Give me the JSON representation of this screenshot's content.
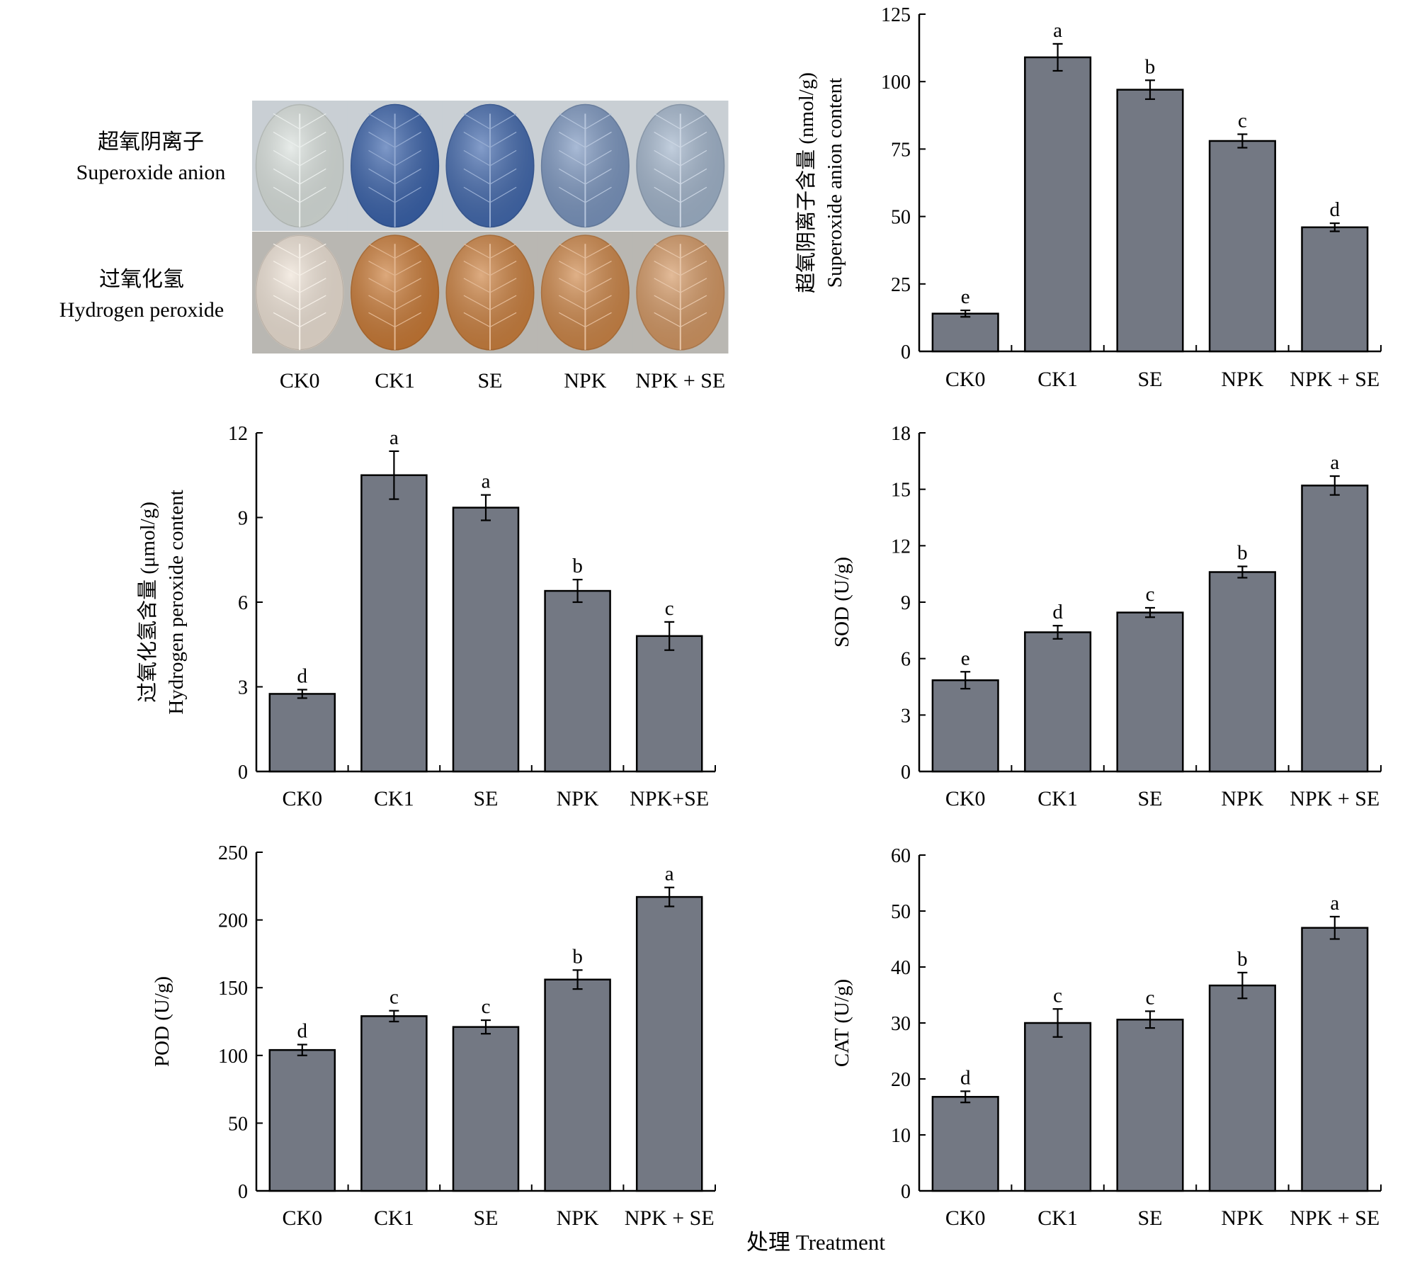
{
  "figure": {
    "x_axis_title": "处理 Treatment",
    "colors": {
      "bar": "#737883",
      "bar_stroke": "#000000",
      "superoxide_stain": "#2f5aa8",
      "peroxide_stain": "#c8742c"
    }
  },
  "photo_panel": {
    "row_labels": [
      {
        "zh": "超氧阴离子",
        "en": "Superoxide anion"
      },
      {
        "zh": "过氧化氢",
        "en": "Hydrogen peroxide"
      }
    ],
    "columns": [
      "CK0",
      "CK1",
      "SE",
      "NPK",
      "NPK + SE"
    ],
    "superoxide_stain_level": [
      0.1,
      0.95,
      0.9,
      0.6,
      0.4
    ],
    "peroxide_stain_level": [
      0.05,
      0.95,
      0.9,
      0.85,
      0.7
    ]
  },
  "chart_data": [
    {
      "id": "superoxide",
      "type": "bar",
      "categories": [
        "CK0",
        "CK1",
        "SE",
        "NPK",
        "NPK + SE"
      ],
      "values": [
        14,
        109,
        97,
        78,
        46
      ],
      "errors": [
        1.2,
        5,
        3.5,
        2.5,
        1.5
      ],
      "letters": [
        "e",
        "a",
        "b",
        "c",
        "d"
      ],
      "ylabel_zh": "超氧阴离子含量 (nmol/g)",
      "ylabel_en": "Superoxide anion content",
      "ylim": [
        0,
        125
      ],
      "yticks": [
        0,
        25,
        50,
        75,
        100,
        125
      ]
    },
    {
      "id": "h2o2",
      "type": "bar",
      "categories": [
        "CK0",
        "CK1",
        "SE",
        "NPK",
        "NPK+SE"
      ],
      "values": [
        2.75,
        10.5,
        9.35,
        6.4,
        4.8
      ],
      "errors": [
        0.15,
        0.85,
        0.45,
        0.4,
        0.5
      ],
      "letters": [
        "d",
        "a",
        "a",
        "b",
        "c"
      ],
      "ylabel_zh": "过氧化氢含量 (μmol/g)",
      "ylabel_en": "Hydrogen peroxide content",
      "ylim": [
        0,
        12
      ],
      "yticks": [
        0,
        3,
        6,
        9,
        12
      ]
    },
    {
      "id": "sod",
      "type": "bar",
      "categories": [
        "CK0",
        "CK1",
        "SE",
        "NPK",
        "NPK + SE"
      ],
      "values": [
        4.85,
        7.4,
        8.45,
        10.6,
        15.2
      ],
      "errors": [
        0.45,
        0.35,
        0.25,
        0.3,
        0.5
      ],
      "letters": [
        "e",
        "d",
        "c",
        "b",
        "a"
      ],
      "ylabel_zh": "",
      "ylabel_en": "SOD (U/g)",
      "ylim": [
        0,
        18
      ],
      "yticks": [
        0,
        3,
        6,
        9,
        12,
        15,
        18
      ]
    },
    {
      "id": "pod",
      "type": "bar",
      "categories": [
        "CK0",
        "CK1",
        "SE",
        "NPK",
        "NPK + SE"
      ],
      "values": [
        104,
        129,
        121,
        156,
        217
      ],
      "errors": [
        4,
        4,
        5,
        7,
        7
      ],
      "letters": [
        "d",
        "c",
        "c",
        "b",
        "a"
      ],
      "ylabel_zh": "",
      "ylabel_en": "POD (U/g)",
      "ylim": [
        0,
        250
      ],
      "yticks": [
        0,
        50,
        100,
        150,
        200,
        250
      ]
    },
    {
      "id": "cat",
      "type": "bar",
      "categories": [
        "CK0",
        "CK1",
        "SE",
        "NPK",
        "NPK + SE"
      ],
      "values": [
        16.8,
        30,
        30.6,
        36.7,
        47
      ],
      "errors": [
        1,
        2.5,
        1.5,
        2.3,
        2
      ],
      "letters": [
        "d",
        "c",
        "c",
        "b",
        "a"
      ],
      "ylabel_zh": "",
      "ylabel_en": "CAT (U/g)",
      "ylim": [
        0,
        60
      ],
      "yticks": [
        0,
        10,
        20,
        30,
        40,
        50,
        60
      ]
    }
  ]
}
